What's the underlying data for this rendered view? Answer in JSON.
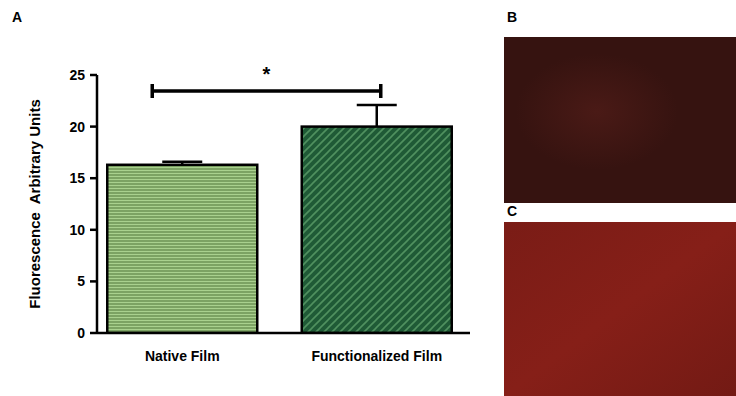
{
  "chart_data": {
    "type": "bar",
    "y_label": "Fluorescence  Arbitrary Units",
    "categories": [
      "Native Film",
      "Functionalized Film"
    ],
    "values": [
      16.3,
      20.0
    ],
    "errors": [
      0.3,
      2.1
    ],
    "colors": [
      "#a9d18e",
      "#1f5a36"
    ],
    "annotation": "*",
    "ylim": [
      0,
      25
    ],
    "yticks": [
      0,
      5,
      10,
      15,
      20,
      25
    ],
    "grid": false
  },
  "panels": {
    "labels": [
      "A",
      "B",
      "C"
    ]
  }
}
